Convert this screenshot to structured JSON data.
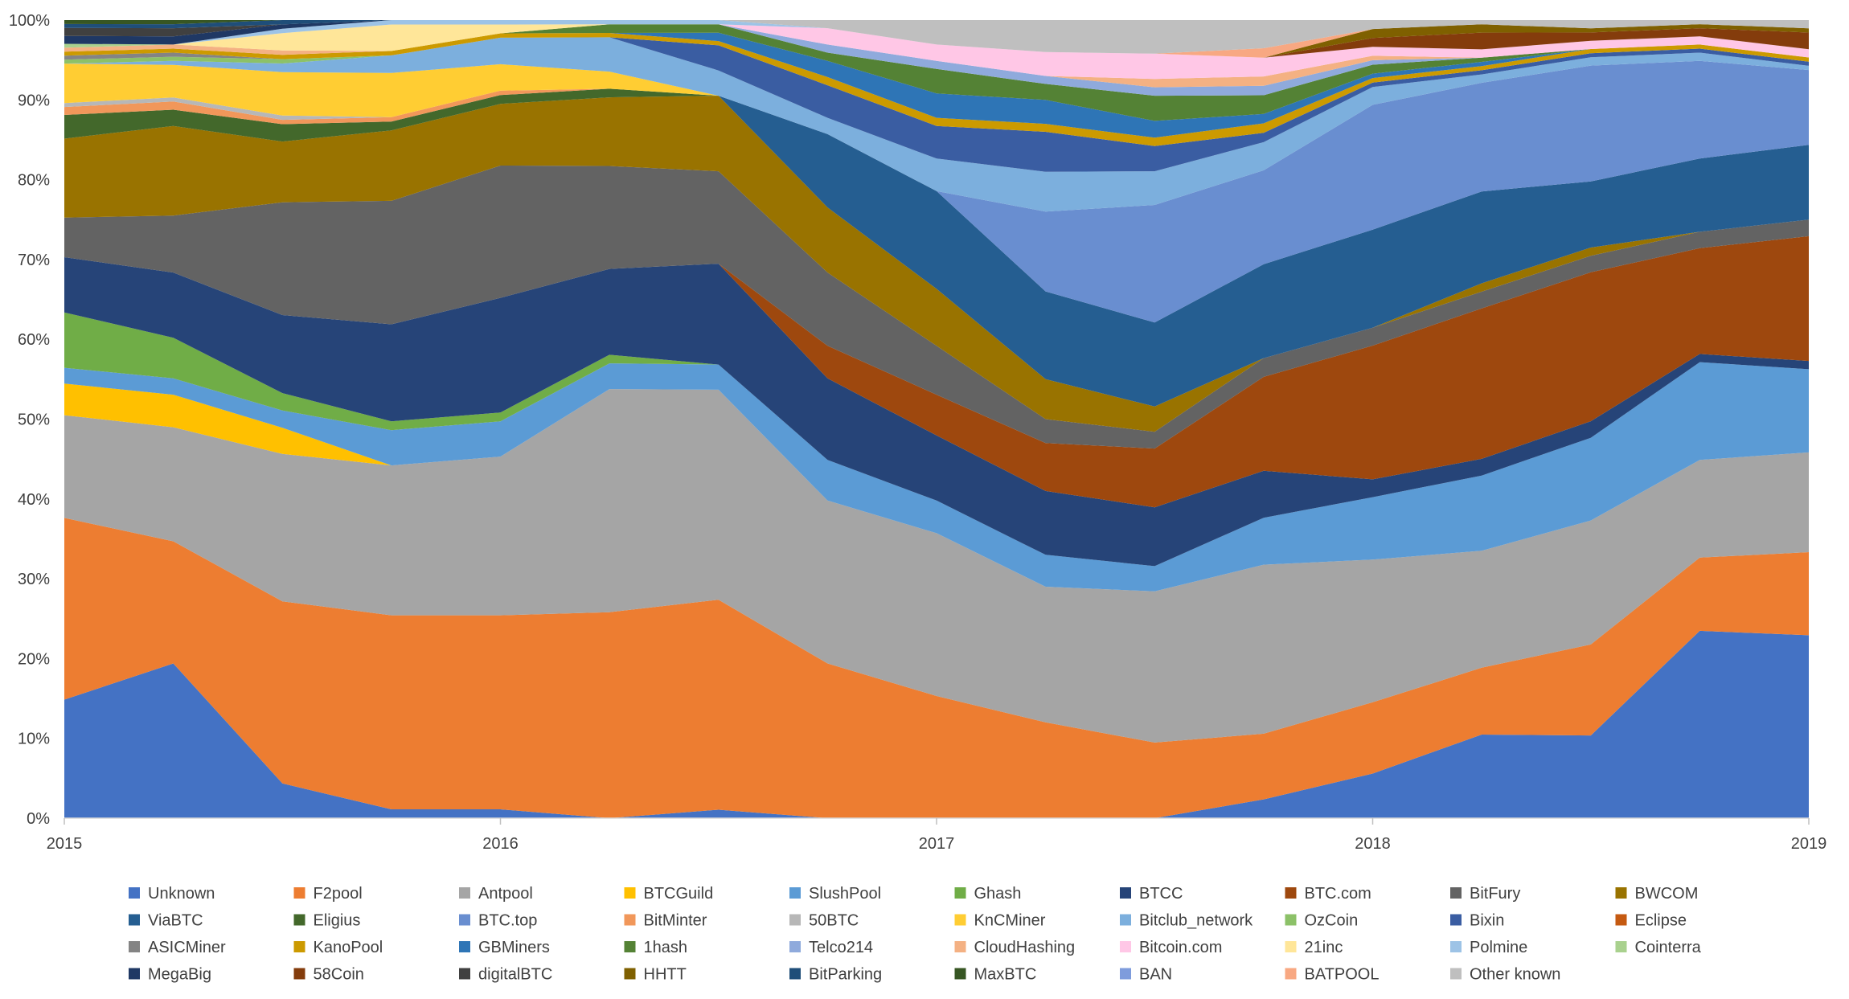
{
  "chart_data": {
    "type": "area",
    "stacked": "percent",
    "title": "",
    "xlabel": "",
    "ylabel": "",
    "x": [
      2015,
      2015.25,
      2015.5,
      2015.75,
      2016,
      2016.25,
      2016.5,
      2016.75,
      2017,
      2017.25,
      2017.5,
      2017.75,
      2018,
      2018.25,
      2018.5,
      2018.75,
      2019
    ],
    "x_ticks": [
      "2015",
      "2016",
      "2017",
      "2018",
      "2019"
    ],
    "y_ticks": [
      "0%",
      "10%",
      "20%",
      "30%",
      "40%",
      "50%",
      "60%",
      "70%",
      "80%",
      "90%",
      "100%"
    ],
    "ylim": [
      0,
      100
    ],
    "legend_position": "bottom",
    "series": [
      {
        "name": "Unknown",
        "color": "#4472C4",
        "values": [
          15,
          19,
          4,
          1,
          1,
          0,
          1,
          0,
          0,
          0,
          0,
          2,
          5,
          10,
          10,
          23,
          22
        ]
      },
      {
        "name": "F2pool",
        "color": "#ED7D31",
        "values": [
          23,
          15,
          21,
          22,
          22,
          24,
          25,
          19,
          15,
          12,
          9,
          7,
          8,
          8,
          11,
          9,
          10
        ]
      },
      {
        "name": "Antpool",
        "color": "#A5A5A5",
        "values": [
          13,
          14,
          17,
          17,
          18,
          26,
          25,
          20,
          20,
          17,
          18,
          18,
          16,
          14,
          15,
          12,
          12
        ]
      },
      {
        "name": "BTCGuild",
        "color": "#FFC000",
        "values": [
          4,
          4,
          3,
          0,
          0,
          0,
          0,
          0,
          0,
          0,
          0,
          0,
          0,
          0,
          0,
          0,
          0
        ]
      },
      {
        "name": "SlushPool",
        "color": "#5B9BD5",
        "values": [
          2,
          2,
          2,
          4,
          4,
          3,
          3,
          5,
          4,
          4,
          3,
          5,
          7,
          9,
          10,
          12,
          10
        ]
      },
      {
        "name": "Ghash",
        "color": "#70AD47",
        "values": [
          7,
          5,
          2,
          1,
          1,
          1,
          0,
          0,
          0,
          0,
          0,
          0,
          0,
          0,
          0,
          0,
          0
        ]
      },
      {
        "name": "BTCC",
        "color": "#264478",
        "values": [
          7,
          8,
          9,
          11,
          13,
          10,
          12,
          10,
          8,
          8,
          7,
          5,
          2,
          2,
          2,
          1,
          1
        ]
      },
      {
        "name": "BTC.com",
        "color": "#9E480E",
        "values": [
          0,
          0,
          0,
          0,
          0,
          0,
          0,
          4,
          5,
          6,
          7,
          10,
          15,
          18,
          18,
          13,
          15
        ]
      },
      {
        "name": "BitFury",
        "color": "#636363",
        "values": [
          5,
          7,
          13,
          14,
          15,
          12,
          11,
          9,
          6,
          3,
          2,
          2,
          2,
          2,
          2,
          2,
          2
        ]
      },
      {
        "name": "BWCOM",
        "color": "#997300",
        "values": [
          10,
          11,
          7,
          8,
          7,
          8,
          9,
          8,
          7,
          5,
          3,
          0,
          0,
          1,
          1,
          0,
          0
        ]
      },
      {
        "name": "ViaBTC",
        "color": "#255E91",
        "values": [
          0,
          0,
          0,
          0,
          0,
          0,
          0,
          9,
          12,
          11,
          10,
          10,
          11,
          11,
          8,
          9,
          9
        ]
      },
      {
        "name": "Eligius",
        "color": "#43682B",
        "values": [
          3,
          2,
          2,
          1,
          1,
          1,
          0,
          0,
          0,
          0,
          0,
          0,
          0,
          0,
          0,
          0,
          0
        ]
      },
      {
        "name": "BTC.top",
        "color": "#698ED0",
        "values": [
          0,
          0,
          0,
          0,
          0,
          0,
          0,
          0,
          0,
          10,
          14,
          10,
          14,
          13,
          14,
          12,
          9
        ]
      },
      {
        "name": "BitMinter",
        "color": "#F1975A",
        "values": [
          1,
          1,
          0.5,
          0.5,
          0.5,
          0,
          0,
          0,
          0,
          0,
          0,
          0,
          0,
          0,
          0,
          0,
          0
        ]
      },
      {
        "name": "50BTC",
        "color": "#B7B7B7",
        "values": [
          0.5,
          0.5,
          0.5,
          0,
          0,
          0,
          0,
          0,
          0,
          0,
          0,
          0,
          0,
          0,
          0,
          0,
          0
        ]
      },
      {
        "name": "KnCMiner",
        "color": "#FFCD33",
        "values": [
          5,
          4,
          5,
          5,
          3,
          2,
          0,
          0,
          0,
          0,
          0,
          0,
          0,
          0,
          0,
          0,
          0
        ]
      },
      {
        "name": "Bitclub_network",
        "color": "#7CAFDD",
        "values": [
          0,
          0.5,
          1,
          2,
          3,
          4,
          3,
          2,
          4,
          5,
          4,
          3,
          2,
          1,
          1,
          1,
          0.5
        ]
      },
      {
        "name": "OzCoin",
        "color": "#8CC168",
        "values": [
          0.5,
          0.5,
          0.5,
          0,
          0,
          0,
          0,
          0,
          0,
          0,
          0,
          0,
          0,
          0,
          0,
          0,
          0
        ]
      },
      {
        "name": "Bixin",
        "color": "#3A5DA2",
        "values": [
          0,
          0,
          0,
          0,
          0,
          0,
          3,
          4,
          4,
          5,
          3,
          1,
          0.5,
          0.5,
          0.5,
          0.5,
          0.5
        ]
      },
      {
        "name": "Eclipse",
        "color": "#C55A11",
        "values": [
          0,
          0,
          0,
          0,
          0,
          0,
          0,
          0,
          0,
          0,
          0,
          0,
          0,
          0,
          0,
          0,
          0
        ]
      },
      {
        "name": "ASICMiner",
        "color": "#848484",
        "values": [
          0.5,
          0.5,
          0,
          0,
          0,
          0,
          0,
          0,
          0,
          0,
          0,
          0,
          0,
          0,
          0,
          0,
          0
        ]
      },
      {
        "name": "KanoPool",
        "color": "#CC9A00",
        "values": [
          0.5,
          0.5,
          0.5,
          0.5,
          0.5,
          0.5,
          0.5,
          1,
          1,
          1,
          1,
          1,
          0.5,
          0.5,
          0.5,
          0.5,
          0.5
        ]
      },
      {
        "name": "GBMiners",
        "color": "#2E75B6",
        "values": [
          0,
          0,
          0,
          0,
          0,
          0,
          1,
          2,
          3,
          3,
          2,
          1,
          0.5,
          0.5,
          0,
          0,
          0
        ]
      },
      {
        "name": "1hash",
        "color": "#548235",
        "values": [
          0,
          0,
          0,
          0,
          0,
          1,
          1,
          1,
          3,
          2,
          3,
          2,
          1,
          0.5,
          0,
          0,
          0
        ]
      },
      {
        "name": "Telco214",
        "color": "#8FAADC",
        "values": [
          0,
          0,
          0,
          0,
          0,
          0,
          0,
          1,
          1,
          1,
          1,
          1,
          0.5,
          0,
          0,
          0,
          0
        ]
      },
      {
        "name": "CloudHashing",
        "color": "#F4B183",
        "values": [
          0.5,
          0.5,
          0.5,
          0,
          0,
          0,
          0,
          0,
          0,
          0,
          1,
          1,
          0.5,
          0,
          0,
          0,
          0
        ]
      },
      {
        "name": "Bitcoin.com",
        "color": "#FFC7E6",
        "values": [
          0,
          0,
          0,
          0,
          0,
          0,
          0,
          2,
          2,
          3,
          3,
          2,
          1,
          1,
          1,
          1,
          1
        ]
      },
      {
        "name": "21inc",
        "color": "#FFE699",
        "values": [
          0,
          0,
          2,
          3,
          1,
          0,
          0,
          0,
          0,
          0,
          0,
          0,
          0,
          0,
          0,
          0,
          0
        ]
      },
      {
        "name": "Polmine",
        "color": "#9DC3E6",
        "values": [
          0,
          0,
          0.5,
          0.5,
          0.5,
          0.5,
          0.5,
          0,
          0,
          0,
          0,
          0,
          0,
          0,
          0,
          0,
          0
        ]
      },
      {
        "name": "Cointerra",
        "color": "#A9D18E",
        "values": [
          0.5,
          0,
          0,
          0,
          0,
          0,
          0,
          0,
          0,
          0,
          0,
          0,
          0,
          0,
          0,
          0,
          0
        ]
      },
      {
        "name": "MegaBig",
        "color": "#1F3864",
        "values": [
          1,
          1,
          0.5,
          0,
          0,
          0,
          0,
          0,
          0,
          0,
          0,
          0,
          0,
          0,
          0,
          0,
          0
        ]
      },
      {
        "name": "58Coin",
        "color": "#843C0C",
        "values": [
          0,
          0,
          0,
          0,
          0,
          0,
          0,
          0,
          0,
          0,
          0,
          0,
          1,
          2,
          1,
          1,
          2
        ]
      },
      {
        "name": "digitalBTC",
        "color": "#404040",
        "values": [
          1,
          1,
          0,
          0,
          0,
          0,
          0,
          0,
          0,
          0,
          0,
          0,
          0,
          0,
          0,
          0,
          0
        ]
      },
      {
        "name": "HHTT",
        "color": "#7F6000",
        "values": [
          0,
          0,
          0,
          0,
          0,
          0,
          0,
          0,
          0,
          0,
          0,
          0,
          1,
          1,
          0.5,
          0.5,
          0.5
        ]
      },
      {
        "name": "BitParking",
        "color": "#1F4E79",
        "values": [
          0.5,
          0.5,
          0.5,
          0,
          0,
          0,
          0,
          0,
          0,
          0,
          0,
          0,
          0,
          0,
          0,
          0,
          0
        ]
      },
      {
        "name": "MaxBTC",
        "color": "#375623",
        "values": [
          0.5,
          0.5,
          0,
          0,
          0,
          0,
          0,
          0,
          0,
          0,
          0,
          0,
          0,
          0,
          0,
          0,
          0
        ]
      },
      {
        "name": "BAN",
        "color": "#7E9CDC",
        "values": [
          0,
          0,
          0,
          0,
          0,
          0,
          0,
          0,
          0,
          0,
          0,
          0,
          0,
          0,
          0,
          0,
          0
        ]
      },
      {
        "name": "BATPOOL",
        "color": "#F8A882",
        "values": [
          0,
          0,
          0,
          0,
          0,
          0,
          0,
          0,
          0,
          0,
          0,
          1,
          0,
          0,
          0,
          0,
          0
        ]
      },
      {
        "name": "Other known",
        "color": "#BFBFBF",
        "values": [
          0,
          0,
          0,
          0,
          0,
          0,
          0,
          1,
          3,
          4,
          4,
          3,
          1,
          0.5,
          1,
          0.5,
          1
        ]
      }
    ]
  }
}
